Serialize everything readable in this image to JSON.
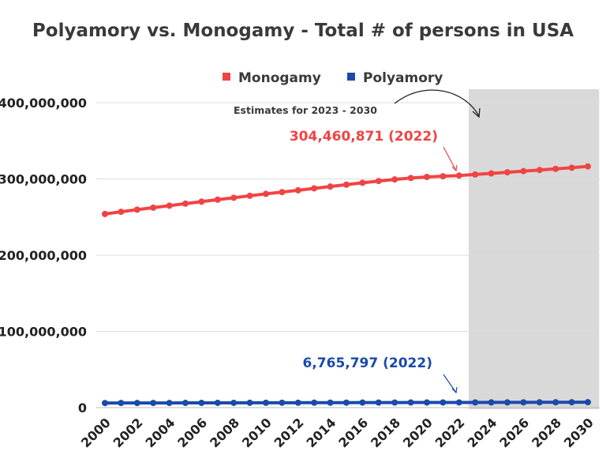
{
  "chart_data": {
    "type": "line",
    "title": "Polyamory vs. Monogamy - Total # of persons in USA",
    "xlabel": "",
    "ylabel": "",
    "x": [
      2000,
      2001,
      2002,
      2003,
      2004,
      2005,
      2006,
      2007,
      2008,
      2009,
      2010,
      2011,
      2012,
      2013,
      2014,
      2015,
      2016,
      2017,
      2018,
      2019,
      2020,
      2021,
      2022,
      2023,
      2024,
      2025,
      2026,
      2027,
      2028,
      2029,
      2030
    ],
    "xticks": [
      "2000",
      "2002",
      "2004",
      "2006",
      "2008",
      "2010",
      "2012",
      "2014",
      "2016",
      "2018",
      "2020",
      "2022",
      "2024",
      "2026",
      "2028",
      "2030"
    ],
    "yticks": [
      "0",
      "100,000,000",
      "200,000,000",
      "300,000,000",
      "400,000,000"
    ],
    "ylim": [
      0,
      400000000
    ],
    "grid": true,
    "legend_position": "top",
    "series": [
      {
        "name": "Monogamy",
        "color": "#f04444",
        "values": [
          254000000,
          256900000,
          259700000,
          262300000,
          264900000,
          267600000,
          270200000,
          272800000,
          275300000,
          277900000,
          280400000,
          282700000,
          285100000,
          287600000,
          290000000,
          292500000,
          294900000,
          297200000,
          299300000,
          301200000,
          302600000,
          303500000,
          304460871,
          305800000,
          307200000,
          308700000,
          310200000,
          311700000,
          313200000,
          314700000,
          316400000
        ]
      },
      {
        "name": "Polyamory",
        "color": "#1a4aaa",
        "values": [
          6000000,
          6030000,
          6070000,
          6100000,
          6140000,
          6170000,
          6200000,
          6240000,
          6270000,
          6310000,
          6340000,
          6380000,
          6410000,
          6450000,
          6490000,
          6530000,
          6570000,
          6610000,
          6650000,
          6690000,
          6720000,
          6740000,
          6765797,
          6800000,
          6840000,
          6880000,
          6920000,
          6960000,
          7000000,
          7050000,
          7100000
        ]
      }
    ],
    "shaded_region": {
      "from": 2022.6,
      "to": 2030.7,
      "color": "#d9d9d9",
      "label": "Estimates for 2023 - 2030"
    },
    "annotations": [
      {
        "text": "304,460,871 (2022)",
        "series": "Monogamy",
        "x": 2022
      },
      {
        "text": "6,765,797 (2022)",
        "series": "Polyamory",
        "x": 2022
      }
    ]
  }
}
